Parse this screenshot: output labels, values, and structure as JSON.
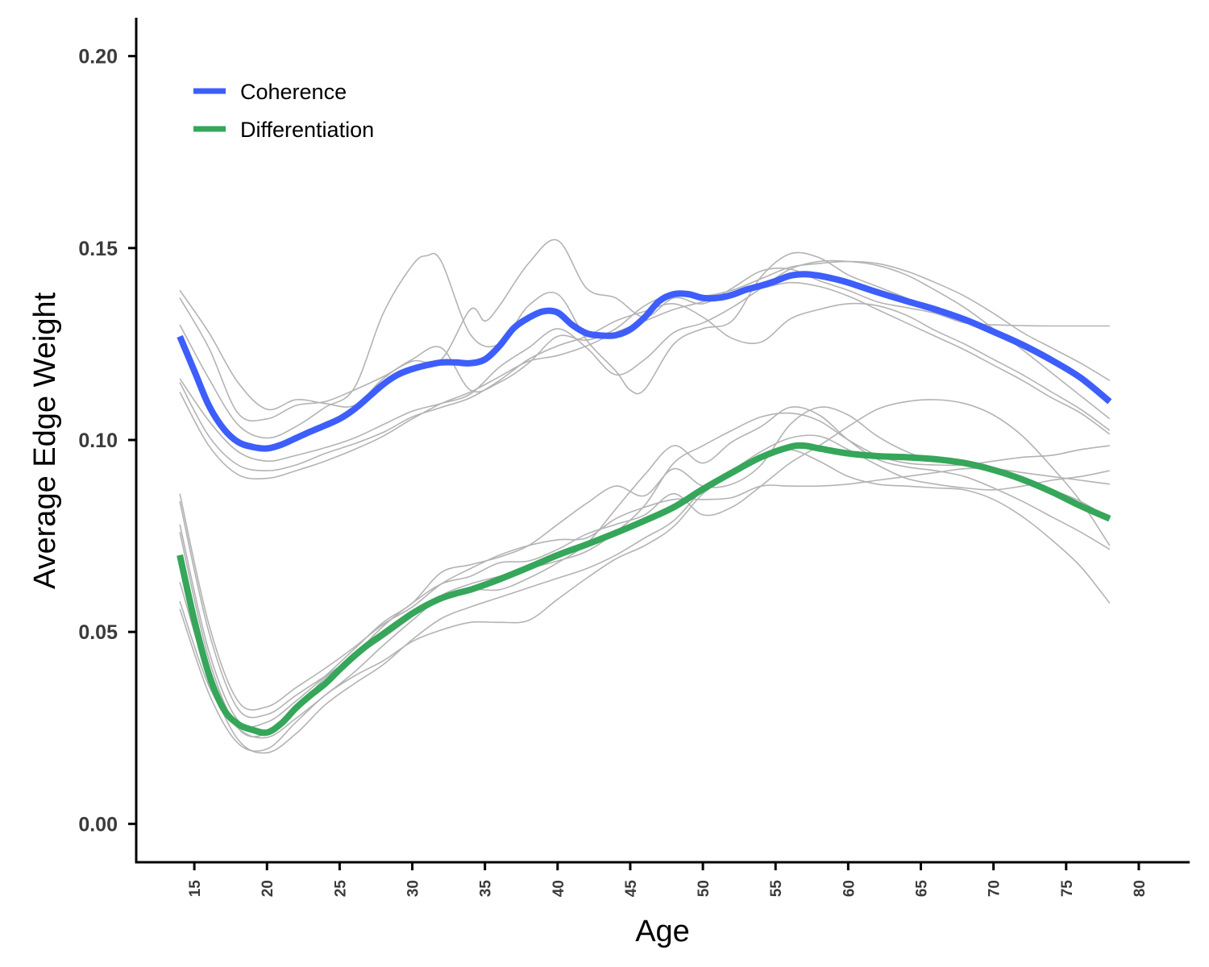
{
  "chart_data": {
    "type": "line",
    "xlabel": "Age",
    "ylabel": "Average Edge Weight",
    "xlim": [
      11,
      83.5
    ],
    "ylim": [
      -0.01,
      0.21
    ],
    "x_ticks": [
      15,
      20,
      25,
      30,
      35,
      40,
      45,
      50,
      55,
      60,
      65,
      70,
      75,
      80
    ],
    "y_ticks": [
      "0.00",
      "0.05",
      "0.10",
      "0.15",
      "0.20"
    ],
    "grid": false,
    "legend_position": "top-left",
    "colors": {
      "coherence": "#3d5efa",
      "differentiation": "#35a65a",
      "background_lines": "#b3b3b3",
      "axis": "#000000"
    },
    "series": [
      {
        "name": "Coherence",
        "x": [
          14,
          15,
          16,
          17,
          18,
          19,
          20,
          21,
          22,
          23,
          24,
          25,
          26,
          27,
          28,
          29,
          30,
          31,
          32,
          33,
          34,
          35,
          36,
          37,
          38,
          39,
          40,
          41,
          42,
          43,
          44,
          45,
          46,
          47,
          48,
          49,
          50,
          51,
          52,
          53,
          54,
          55,
          56,
          57,
          58,
          59,
          60,
          62,
          64,
          66,
          68,
          70,
          72,
          74,
          76,
          78
        ],
        "y": [
          0.127,
          0.118,
          0.109,
          0.103,
          0.0995,
          0.0982,
          0.0978,
          0.0988,
          0.1005,
          0.1022,
          0.1038,
          0.1055,
          0.108,
          0.1112,
          0.1145,
          0.117,
          0.1185,
          0.1195,
          0.1202,
          0.1202,
          0.12,
          0.121,
          0.1245,
          0.1292,
          0.1318,
          0.1335,
          0.1332,
          0.13,
          0.1278,
          0.1272,
          0.1273,
          0.1288,
          0.132,
          0.1362,
          0.138,
          0.138,
          0.137,
          0.137,
          0.1378,
          0.1392,
          0.1402,
          0.1414,
          0.1428,
          0.1432,
          0.1428,
          0.142,
          0.141,
          0.1385,
          0.1362,
          0.134,
          0.1314,
          0.1282,
          0.1248,
          0.1208,
          0.1162,
          0.11
        ]
      },
      {
        "name": "Differentiation",
        "x": [
          14,
          15,
          16,
          17,
          18,
          19,
          20,
          21,
          22,
          23,
          24,
          25,
          26,
          27,
          28,
          29,
          30,
          31,
          32,
          33,
          34,
          35,
          36,
          38,
          40,
          42,
          44,
          46,
          48,
          50,
          52,
          54,
          56,
          57,
          58,
          60,
          62,
          64,
          66,
          68,
          70,
          72,
          74,
          76,
          78
        ],
        "y": [
          0.07,
          0.053,
          0.039,
          0.03,
          0.026,
          0.0245,
          0.0238,
          0.0262,
          0.0302,
          0.0335,
          0.0365,
          0.0402,
          0.0437,
          0.0468,
          0.0495,
          0.0522,
          0.0548,
          0.057,
          0.0588,
          0.06,
          0.061,
          0.0623,
          0.0637,
          0.0668,
          0.07,
          0.0728,
          0.0758,
          0.079,
          0.0825,
          0.0872,
          0.0915,
          0.0955,
          0.0982,
          0.0985,
          0.0978,
          0.0965,
          0.0958,
          0.0955,
          0.095,
          0.094,
          0.0922,
          0.0897,
          0.0865,
          0.0828,
          0.0795
        ]
      }
    ],
    "background_lines": [
      {
        "x": [
          14,
          16,
          18,
          20,
          22,
          24,
          26,
          28,
          30,
          32,
          34,
          36,
          38,
          40,
          42,
          44,
          46,
          48,
          50,
          52,
          54,
          56,
          58,
          60,
          62,
          64,
          66,
          68,
          70,
          72,
          74,
          76,
          78
        ],
        "y": [
          0.139,
          0.128,
          0.115,
          0.108,
          0.1105,
          0.1095,
          0.109,
          0.116,
          0.121,
          0.124,
          0.113,
          0.115,
          0.12,
          0.127,
          0.126,
          0.129,
          0.135,
          0.138,
          0.1375,
          0.139,
          0.142,
          0.145,
          0.146,
          0.1465,
          0.146,
          0.144,
          0.141,
          0.1375,
          0.133,
          0.128,
          0.124,
          0.12,
          0.1155
        ]
      },
      {
        "x": [
          14,
          16,
          18,
          20,
          22,
          24,
          26,
          28,
          30,
          32,
          34,
          35,
          36,
          38,
          40,
          42,
          44,
          46,
          48,
          50,
          52,
          54,
          56,
          58,
          60,
          62,
          64,
          66,
          68,
          70,
          72,
          74,
          76,
          78
        ],
        "y": [
          0.137,
          0.124,
          0.107,
          0.1055,
          0.109,
          0.11,
          0.113,
          0.1165,
          0.1205,
          0.121,
          0.134,
          0.131,
          0.135,
          0.146,
          0.152,
          0.1395,
          0.137,
          0.132,
          0.137,
          0.1355,
          0.1395,
          0.144,
          0.1445,
          0.1415,
          0.139,
          0.136,
          0.1345,
          0.133,
          0.1305,
          0.13,
          0.1298,
          0.1297,
          0.1297,
          0.1297
        ]
      },
      {
        "x": [
          14,
          16,
          18,
          20,
          22,
          24,
          26,
          28,
          30,
          31,
          32,
          34,
          36,
          38,
          40,
          42,
          44,
          45,
          46,
          48,
          50,
          52,
          54,
          56,
          58,
          60,
          62,
          64,
          66,
          68,
          70,
          72,
          74,
          76,
          78
        ],
        "y": [
          0.13,
          0.116,
          0.104,
          0.1005,
          0.1035,
          0.1085,
          0.1135,
          0.133,
          0.1455,
          0.148,
          0.1465,
          0.1275,
          0.125,
          0.135,
          0.138,
          0.126,
          0.118,
          0.113,
          0.1132,
          0.125,
          0.129,
          0.131,
          0.1425,
          0.1485,
          0.1475,
          0.143,
          0.14,
          0.137,
          0.134,
          0.131,
          0.1275,
          0.124,
          0.12,
          0.1155,
          0.11
        ]
      },
      {
        "x": [
          14,
          16,
          18,
          20,
          22,
          24,
          26,
          28,
          30,
          32,
          34,
          36,
          38,
          40,
          42,
          44,
          46,
          48,
          50,
          52,
          54,
          56,
          58,
          60,
          62,
          64,
          66,
          68,
          70,
          72,
          74,
          76,
          78
        ],
        "y": [
          0.116,
          0.105,
          0.097,
          0.0945,
          0.096,
          0.098,
          0.1005,
          0.104,
          0.1075,
          0.1095,
          0.112,
          0.119,
          0.124,
          0.129,
          0.124,
          0.117,
          0.121,
          0.128,
          0.1305,
          0.1345,
          0.1395,
          0.1445,
          0.1465,
          0.1465,
          0.1455,
          0.143,
          0.139,
          0.1345,
          0.129,
          0.1235,
          0.1175,
          0.1115,
          0.1055
        ]
      },
      {
        "x": [
          14,
          16,
          18,
          20,
          22,
          24,
          26,
          28,
          30,
          32,
          34,
          36,
          38,
          40,
          42,
          44,
          46,
          48,
          50,
          52,
          54,
          56,
          58,
          60,
          62,
          64,
          66,
          68,
          70,
          72,
          74,
          76,
          78
        ],
        "y": [
          0.115,
          0.101,
          0.0935,
          0.092,
          0.0935,
          0.0965,
          0.099,
          0.102,
          0.106,
          0.1085,
          0.111,
          0.1155,
          0.121,
          0.1245,
          0.127,
          0.131,
          0.1335,
          0.1355,
          0.132,
          0.1265,
          0.1255,
          0.1315,
          0.134,
          0.1355,
          0.135,
          0.1325,
          0.1285,
          0.125,
          0.121,
          0.117,
          0.1125,
          0.108,
          0.1025
        ]
      },
      {
        "x": [
          14,
          16,
          18,
          20,
          22,
          24,
          26,
          28,
          30,
          32,
          34,
          36,
          38,
          40,
          42,
          44,
          46,
          48,
          50,
          52,
          54,
          56,
          58,
          60,
          62,
          64,
          66,
          68,
          70,
          72,
          74,
          76,
          78
        ],
        "y": [
          0.1125,
          0.0985,
          0.091,
          0.09,
          0.092,
          0.0945,
          0.0975,
          0.101,
          0.1055,
          0.1095,
          0.1125,
          0.1165,
          0.1205,
          0.122,
          0.1245,
          0.128,
          0.131,
          0.134,
          0.136,
          0.138,
          0.1395,
          0.141,
          0.14,
          0.1375,
          0.134,
          0.1305,
          0.127,
          0.1235,
          0.1195,
          0.1155,
          0.111,
          0.107,
          0.1015
        ]
      },
      {
        "x": [
          14,
          16,
          18,
          20,
          22,
          24,
          26,
          28,
          30,
          32,
          34,
          36,
          38,
          40,
          42,
          44,
          46,
          48,
          50,
          52,
          54,
          56,
          58,
          60,
          62,
          64,
          66,
          68,
          70,
          72,
          74,
          76,
          78
        ],
        "y": [
          0.086,
          0.052,
          0.032,
          0.0305,
          0.0355,
          0.0405,
          0.046,
          0.052,
          0.0565,
          0.0625,
          0.0665,
          0.07,
          0.0725,
          0.074,
          0.0745,
          0.0795,
          0.0825,
          0.0845,
          0.0845,
          0.085,
          0.088,
          0.088,
          0.088,
          0.0885,
          0.0895,
          0.0905,
          0.0915,
          0.0925,
          0.0925,
          0.0915,
          0.0905,
          0.0895,
          0.0885
        ]
      },
      {
        "x": [
          14,
          16,
          18,
          20,
          22,
          24,
          26,
          28,
          30,
          32,
          34,
          36,
          38,
          40,
          42,
          44,
          46,
          48,
          50,
          52,
          54,
          56,
          58,
          60,
          62,
          64,
          66,
          68,
          70,
          72,
          74,
          76,
          78
        ],
        "y": [
          0.084,
          0.05,
          0.03,
          0.0285,
          0.0335,
          0.0385,
          0.0435,
          0.0485,
          0.054,
          0.0595,
          0.0625,
          0.0645,
          0.0665,
          0.0685,
          0.071,
          0.076,
          0.083,
          0.094,
          0.0985,
          0.1025,
          0.106,
          0.107,
          0.105,
          0.1,
          0.096,
          0.094,
          0.0935,
          0.0935,
          0.0945,
          0.0955,
          0.096,
          0.0975,
          0.0985
        ]
      },
      {
        "x": [
          14,
          16,
          18,
          20,
          22,
          24,
          26,
          28,
          30,
          32,
          34,
          36,
          38,
          40,
          42,
          44,
          46,
          48,
          50,
          52,
          54,
          56,
          58,
          60,
          62,
          64,
          66,
          68,
          70,
          72,
          74,
          76,
          78
        ],
        "y": [
          0.078,
          0.045,
          0.027,
          0.0265,
          0.032,
          0.0385,
          0.0455,
          0.0525,
          0.0575,
          0.0655,
          0.0675,
          0.0695,
          0.0725,
          0.078,
          0.0835,
          0.088,
          0.0855,
          0.0925,
          0.088,
          0.0885,
          0.0935,
          0.104,
          0.1085,
          0.1065,
          0.101,
          0.097,
          0.0945,
          0.0935,
          0.092,
          0.0895,
          0.087,
          0.084,
          0.0795
        ]
      },
      {
        "x": [
          14,
          16,
          18,
          20,
          22,
          24,
          26,
          28,
          30,
          32,
          34,
          36,
          38,
          40,
          42,
          44,
          46,
          48,
          50,
          52,
          54,
          56,
          58,
          60,
          62,
          64,
          66,
          68,
          70,
          72,
          74,
          76,
          78
        ],
        "y": [
          0.076,
          0.043,
          0.025,
          0.0235,
          0.03,
          0.038,
          0.044,
          0.0515,
          0.0575,
          0.0625,
          0.0645,
          0.068,
          0.0685,
          0.0715,
          0.0755,
          0.078,
          0.0805,
          0.086,
          0.0805,
          0.0825,
          0.088,
          0.094,
          0.0985,
          0.1035,
          0.108,
          0.11,
          0.1105,
          0.1095,
          0.1065,
          0.101,
          0.093,
          0.084,
          0.0725
        ]
      },
      {
        "x": [
          14,
          16,
          18,
          20,
          22,
          24,
          26,
          28,
          30,
          32,
          34,
          36,
          38,
          40,
          42,
          44,
          46,
          48,
          50,
          52,
          54,
          56,
          58,
          60,
          62,
          64,
          66,
          68,
          70,
          72,
          74,
          76,
          78
        ],
        "y": [
          0.058,
          0.036,
          0.025,
          0.0225,
          0.0275,
          0.0335,
          0.0395,
          0.0465,
          0.053,
          0.059,
          0.061,
          0.061,
          0.064,
          0.068,
          0.073,
          0.082,
          0.091,
          0.0985,
          0.094,
          0.0995,
          0.1035,
          0.1085,
          0.1065,
          0.1,
          0.095,
          0.093,
          0.092,
          0.0905,
          0.0875,
          0.084,
          0.08,
          0.076,
          0.0715
        ]
      },
      {
        "x": [
          14,
          16,
          18,
          20,
          22,
          24,
          26,
          28,
          30,
          32,
          34,
          36,
          38,
          40,
          42,
          44,
          46,
          48,
          50,
          52,
          54,
          56,
          58,
          60,
          62,
          64,
          66,
          68,
          70,
          72,
          74,
          76,
          78
        ],
        "y": [
          0.056,
          0.034,
          0.021,
          0.0195,
          0.0265,
          0.0335,
          0.0385,
          0.0425,
          0.0475,
          0.0505,
          0.0525,
          0.0525,
          0.053,
          0.0585,
          0.064,
          0.069,
          0.0725,
          0.0775,
          0.086,
          0.091,
          0.096,
          0.0975,
          0.0945,
          0.0905,
          0.0885,
          0.088,
          0.0875,
          0.087,
          0.0845,
          0.08,
          0.074,
          0.067,
          0.0575
        ]
      },
      {
        "x": [
          14,
          16,
          18,
          20,
          22,
          24,
          26,
          28,
          30,
          32,
          34,
          36,
          38,
          40,
          42,
          44,
          46,
          48,
          50,
          52,
          54,
          56,
          58,
          60,
          62,
          64,
          66,
          68,
          70,
          72,
          74,
          76,
          78
        ],
        "y": [
          0.063,
          0.038,
          0.022,
          0.0185,
          0.0235,
          0.031,
          0.0365,
          0.0415,
          0.048,
          0.0535,
          0.0565,
          0.059,
          0.0615,
          0.064,
          0.0665,
          0.07,
          0.0745,
          0.079,
          0.087,
          0.092,
          0.097,
          0.1005,
          0.101,
          0.0975,
          0.0935,
          0.09,
          0.0885,
          0.0875,
          0.087,
          0.088,
          0.0895,
          0.0905,
          0.092
        ]
      }
    ]
  }
}
